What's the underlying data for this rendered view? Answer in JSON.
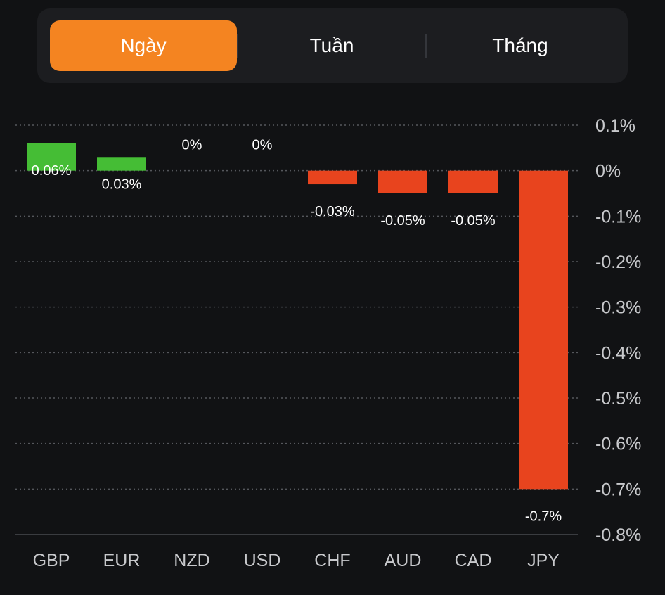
{
  "tabs": [
    {
      "label": "Ngày",
      "active": true
    },
    {
      "label": "Tuần",
      "active": false
    },
    {
      "label": "Tháng",
      "active": false
    }
  ],
  "colors": {
    "positive": "#45bd35",
    "negative": "#e8441e",
    "accent": "#f48421",
    "grid": "#55575c",
    "text": "#ffffff",
    "axis_text": "#c8c9cc"
  },
  "chart_data": {
    "type": "bar",
    "categories": [
      "GBP",
      "EUR",
      "NZD",
      "USD",
      "CHF",
      "AUD",
      "CAD",
      "JPY"
    ],
    "values": [
      0.06,
      0.03,
      0,
      0,
      -0.03,
      -0.05,
      -0.05,
      -0.7
    ],
    "value_labels": [
      "0.06%",
      "0.03%",
      "0%",
      "0%",
      "-0.03%",
      "-0.05%",
      "-0.05%",
      "-0.7%"
    ],
    "ylim": [
      -0.8,
      0.1
    ],
    "yticks": [
      0.1,
      0,
      -0.1,
      -0.2,
      -0.3,
      -0.4,
      -0.5,
      -0.6,
      -0.7,
      -0.8
    ],
    "ytick_labels": [
      "0.1%",
      "0%",
      "-0.1%",
      "-0.2%",
      "-0.3%",
      "-0.4%",
      "-0.5%",
      "-0.6%",
      "-0.7%",
      "-0.8%"
    ],
    "y_axis_position": "right",
    "grid": true
  }
}
